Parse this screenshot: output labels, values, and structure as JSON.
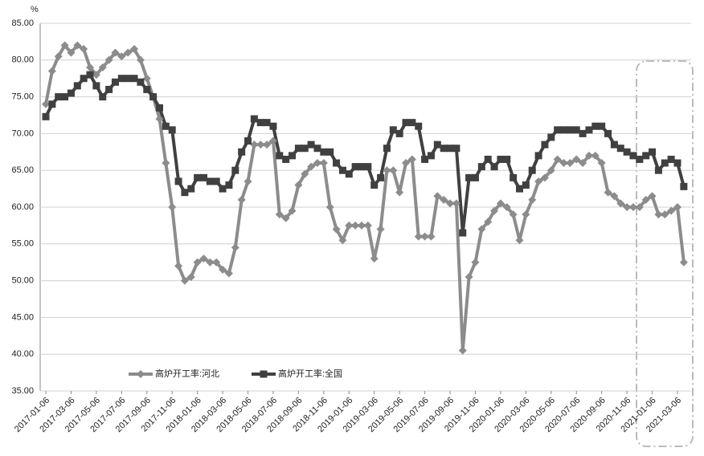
{
  "chart_data": {
    "type": "line",
    "y_unit": "%",
    "categories": [
      "2017-01-06",
      null,
      null,
      null,
      "2017-03-06",
      null,
      null,
      null,
      "2017-05-06",
      null,
      null,
      null,
      "2017-07-06",
      null,
      null,
      null,
      "2017-09-06",
      null,
      null,
      null,
      "2017-11-06",
      null,
      null,
      null,
      "2018-01-06",
      null,
      null,
      null,
      "2018-03-06",
      null,
      null,
      null,
      "2018-05-06",
      null,
      null,
      null,
      "2018-07-06",
      null,
      null,
      null,
      "2018-09-06",
      null,
      null,
      null,
      "2018-11-06",
      null,
      null,
      null,
      "2019-01-06",
      null,
      null,
      null,
      "2019-03-06",
      null,
      null,
      null,
      "2019-05-06",
      null,
      null,
      null,
      "2019-07-06",
      null,
      null,
      null,
      "2019-09-06",
      null,
      null,
      null,
      "2019-11-06",
      null,
      null,
      null,
      "2020-01-06",
      null,
      null,
      null,
      "2020-03-06",
      null,
      null,
      null,
      "2020-05-06",
      null,
      null,
      null,
      "2020-07-06",
      null,
      null,
      null,
      "2020-09-06",
      null,
      null,
      null,
      "2020-11-06",
      null,
      null,
      null,
      "2021-01-06",
      null,
      null,
      null,
      "2021-03-06",
      null
    ],
    "series": [
      {
        "name": "高炉开工率:河北",
        "color": "#8c8c8c",
        "marker": "diamond",
        "values": [
          74,
          78.5,
          80.5,
          82,
          81,
          82,
          81.5,
          79,
          78,
          79,
          80,
          81,
          80.5,
          81,
          81.5,
          80,
          77.5,
          75,
          72,
          66,
          60,
          52,
          50,
          50.5,
          52.5,
          53,
          52.5,
          52.5,
          51.5,
          51,
          54.5,
          61,
          63.5,
          68.5,
          68.5,
          68.5,
          69,
          59,
          58.5,
          59.5,
          63,
          64.5,
          65.5,
          66,
          66,
          60,
          57,
          55.5,
          57.5,
          57.5,
          57.5,
          57.5,
          53,
          57,
          65,
          65,
          62,
          66,
          66.5,
          56,
          56,
          56,
          61.5,
          61,
          60.5,
          60.5,
          40.5,
          50.5,
          52.5,
          57,
          58,
          59.5,
          60.5,
          60,
          59,
          55.5,
          59,
          61,
          63.5,
          64,
          65,
          66.5,
          66,
          66,
          66.5,
          66,
          67,
          67,
          66,
          62,
          61.5,
          60.5,
          60,
          60,
          60,
          61,
          61.5,
          59,
          59,
          59.5,
          60,
          52.5
        ]
      },
      {
        "name": "高炉开工率:全国",
        "color": "#404040",
        "marker": "square",
        "values": [
          72.3,
          74,
          75,
          75,
          75.5,
          76.5,
          77.5,
          78,
          76.5,
          75,
          76,
          77,
          77.5,
          77.5,
          77.5,
          77,
          76,
          75,
          73.5,
          71,
          70.5,
          63.5,
          62,
          62.5,
          64,
          64,
          63.5,
          63.5,
          62.5,
          63,
          65,
          67.5,
          69,
          72,
          71.5,
          71.5,
          71,
          67,
          66.5,
          67,
          68,
          68,
          68.5,
          68,
          67.5,
          67.5,
          66,
          65,
          64.5,
          65.5,
          65.5,
          65.5,
          63,
          64,
          68,
          70.5,
          70,
          71.5,
          71.5,
          71,
          66.5,
          67,
          68.5,
          68,
          68,
          68,
          56.5,
          64,
          64,
          65.5,
          66.5,
          65.5,
          66.5,
          66.5,
          64,
          62.5,
          63,
          65,
          67,
          68.5,
          69.5,
          70.5,
          70.5,
          70.5,
          70.5,
          70,
          70.5,
          71,
          71,
          70,
          68.5,
          68,
          67.5,
          67,
          66.5,
          67,
          67.5,
          65,
          66,
          66.5,
          66,
          62.8
        ]
      }
    ],
    "ylim": [
      35,
      85
    ],
    "yticks": [
      {
        "value": 35,
        "label": "35.00"
      },
      {
        "value": 40,
        "label": "40.00"
      },
      {
        "value": 45,
        "label": "45.00"
      },
      {
        "value": 50,
        "label": "50.00"
      },
      {
        "value": 55,
        "label": "55.00"
      },
      {
        "value": 60,
        "label": "60.00"
      },
      {
        "value": 65,
        "label": "65.00"
      },
      {
        "value": 70,
        "label": "70.00"
      },
      {
        "value": 75,
        "label": "75.00"
      },
      {
        "value": 80,
        "label": "80.00"
      },
      {
        "value": 85,
        "label": "85.00"
      }
    ],
    "grid": true,
    "legend": "bottom"
  }
}
